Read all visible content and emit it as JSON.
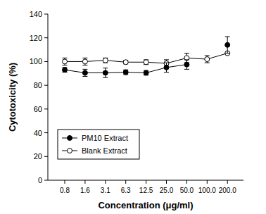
{
  "chart_data": {
    "type": "line",
    "x_label": "Concentration (μg/ml)",
    "y_label": "Cytotoxicity (%)",
    "categories": [
      "0.8",
      "1.6",
      "3.1",
      "6.3",
      "12.5",
      "25.0",
      "50.0",
      "100.0",
      "200.0"
    ],
    "series": [
      {
        "name": "PM10 Extract",
        "color": "#000000",
        "marker": "filled-circle",
        "line_style": "solid",
        "values": [
          93,
          90.5,
          90.5,
          91,
          90.5,
          95,
          97.5,
          null,
          114
        ],
        "errors": [
          2,
          3,
          4,
          2,
          2,
          4,
          4,
          null,
          7
        ]
      },
      {
        "name": "Blank Extract",
        "color": "#000000",
        "marker": "open-circle",
        "line_style": "solid",
        "values": [
          100,
          100,
          101,
          99.5,
          99.5,
          98.5,
          103,
          102,
          107
        ],
        "errors": [
          3,
          3,
          2,
          1.5,
          2,
          3,
          4,
          3,
          null
        ]
      }
    ],
    "ylim": [
      0,
      140
    ],
    "yticks": [
      0,
      20,
      40,
      60,
      80,
      100,
      120,
      140
    ],
    "grid": false,
    "legend": "lower-left",
    "data_labels": false
  }
}
